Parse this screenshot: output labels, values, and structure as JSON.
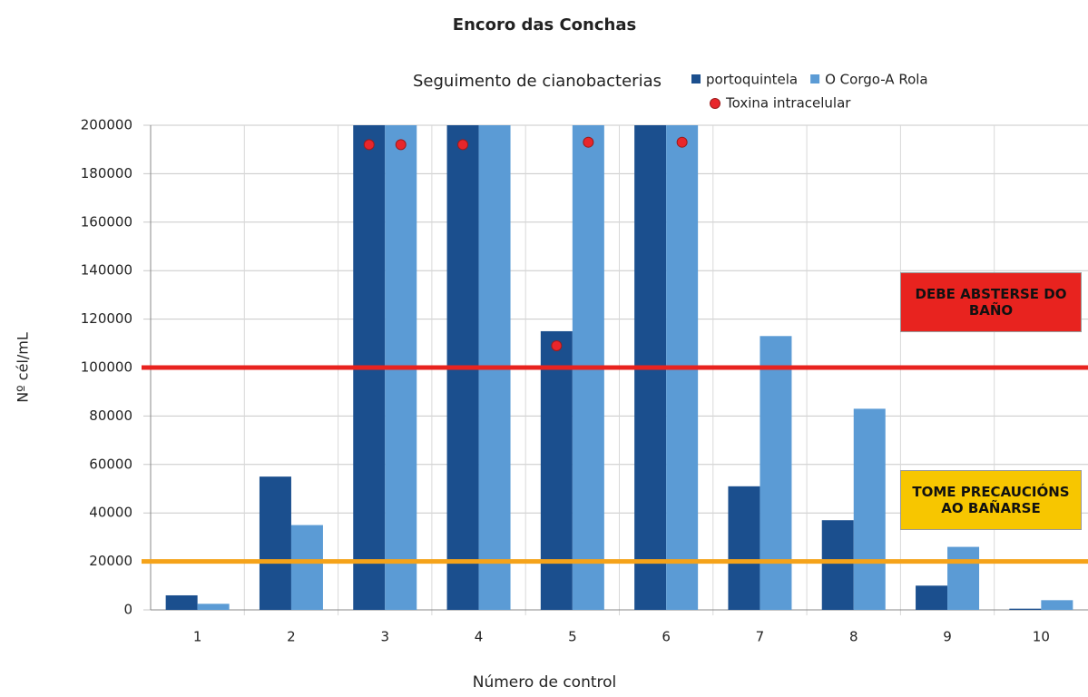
{
  "chart_data": {
    "type": "bar",
    "title": "Encoro das Conchas",
    "subtitle": "Seguimento de cianobacterias",
    "x_label": "Número de control",
    "y_label": "Nº cél/mL",
    "categories": [
      "1",
      "2",
      "3",
      "4",
      "5",
      "6",
      "7",
      "8",
      "9",
      "10"
    ],
    "series": [
      {
        "name": "portoquintela",
        "color": "#1b4f8e",
        "values": [
          6000,
          55000,
          200000,
          200000,
          115000,
          200000,
          51000,
          37000,
          10000,
          500
        ]
      },
      {
        "name": "O Corgo-A Rola",
        "color": "#5b9bd5",
        "values": [
          2500,
          35000,
          200000,
          200000,
          200000,
          200000,
          113000,
          83000,
          26000,
          4000
        ]
      }
    ],
    "markers": {
      "name": "Toxina intracelular",
      "color": "#e8262b",
      "values": [
        [
          null,
          null
        ],
        [
          null,
          null
        ],
        [
          192000,
          192000
        ],
        [
          192000,
          null
        ],
        [
          109000,
          193000
        ],
        [
          null,
          193000
        ],
        [
          null,
          null
        ],
        [
          null,
          null
        ],
        [
          null,
          null
        ],
        [
          null,
          null
        ]
      ]
    },
    "thresholds": [
      {
        "value": 100000,
        "color": "#e8231f",
        "label": "DEBE ABSTERSE DO BAÑO"
      },
      {
        "value": 20000,
        "color": "#f5a31a",
        "label": "TOME PRECAUCIÓNS AO BAÑARSE",
        "label_color": "#f7c600"
      }
    ],
    "ylim": [
      0,
      200000
    ],
    "yticks": [
      0,
      20000,
      40000,
      60000,
      80000,
      100000,
      120000,
      140000,
      160000,
      180000,
      200000
    ],
    "grid": true
  }
}
